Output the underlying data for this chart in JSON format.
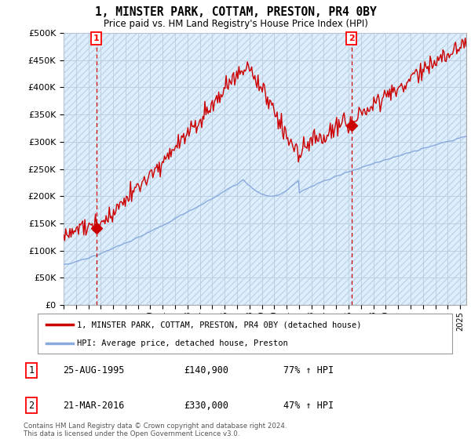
{
  "title": "1, MINSTER PARK, COTTAM, PRESTON, PR4 0BY",
  "subtitle": "Price paid vs. HM Land Registry's House Price Index (HPI)",
  "ylim": [
    0,
    500000
  ],
  "yticks": [
    0,
    50000,
    100000,
    150000,
    200000,
    250000,
    300000,
    350000,
    400000,
    450000,
    500000
  ],
  "hpi_color": "#88aadd",
  "price_color": "#cc0000",
  "sale1": {
    "date_num": 1995.65,
    "price": 140900,
    "label": "1"
  },
  "sale2": {
    "date_num": 2016.22,
    "price": 330000,
    "label": "2"
  },
  "legend_price_label": "1, MINSTER PARK, COTTAM, PRESTON, PR4 0BY (detached house)",
  "legend_hpi_label": "HPI: Average price, detached house, Preston",
  "table": [
    {
      "num": "1",
      "date": "25-AUG-1995",
      "price": "£140,900",
      "change": "77% ↑ HPI"
    },
    {
      "num": "2",
      "date": "21-MAR-2016",
      "price": "£330,000",
      "change": "47% ↑ HPI"
    }
  ],
  "footnote": "Contains HM Land Registry data © Crown copyright and database right 2024.\nThis data is licensed under the Open Government Licence v3.0.",
  "background_color": "#ffffff",
  "chart_bg_color": "#ddeeff",
  "grid_color": "#bbccdd"
}
